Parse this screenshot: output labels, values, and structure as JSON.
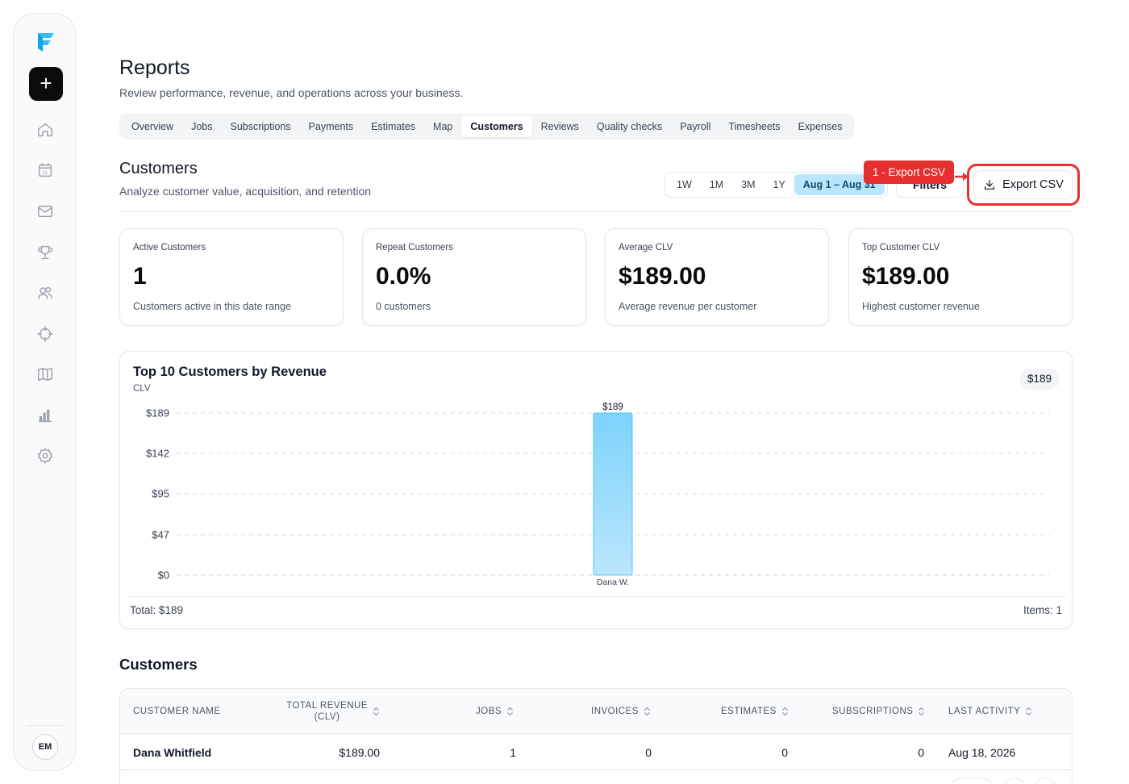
{
  "sidebar": {
    "add_label": "+",
    "icons": [
      "home-icon",
      "calendar-icon",
      "mail-icon",
      "trophy-icon",
      "users-icon",
      "crosshair-icon",
      "map-icon",
      "bar-chart-icon",
      "gear-icon"
    ],
    "calendar_day": "31",
    "avatar_initials": "EM"
  },
  "header": {
    "title": "Reports",
    "subtitle": "Review performance, revenue, and operations across your business."
  },
  "tabs": [
    {
      "label": "Overview",
      "active": false
    },
    {
      "label": "Jobs",
      "active": false
    },
    {
      "label": "Subscriptions",
      "active": false
    },
    {
      "label": "Payments",
      "active": false
    },
    {
      "label": "Estimates",
      "active": false
    },
    {
      "label": "Map",
      "active": false
    },
    {
      "label": "Customers",
      "active": true
    },
    {
      "label": "Reviews",
      "active": false
    },
    {
      "label": "Quality checks",
      "active": false
    },
    {
      "label": "Payroll",
      "active": false
    },
    {
      "label": "Timesheets",
      "active": false
    },
    {
      "label": "Expenses",
      "active": false
    }
  ],
  "section": {
    "title": "Customers",
    "subtitle": "Analyze customer value, acquisition, and retention"
  },
  "toolbar": {
    "ranges": [
      {
        "label": "1W",
        "active": false
      },
      {
        "label": "1M",
        "active": false
      },
      {
        "label": "3M",
        "active": false
      },
      {
        "label": "1Y",
        "active": false
      },
      {
        "label": "Aug 1 – Aug 31",
        "active": true
      }
    ],
    "filters_label": "Filters",
    "export_label": "Export CSV",
    "callout_label": "1 - Export CSV"
  },
  "kpis": [
    {
      "label": "Active Customers",
      "value": "1",
      "desc": "Customers active in this date range"
    },
    {
      "label": "Repeat Customers",
      "value": "0.0%",
      "desc": "0 customers"
    },
    {
      "label": "Average CLV",
      "value": "$189.00",
      "desc": "Average revenue per customer"
    },
    {
      "label": "Top Customer CLV",
      "value": "$189.00",
      "desc": "Highest customer revenue"
    }
  ],
  "chart": {
    "title": "Top 10 Customers by Revenue",
    "subtitle": "CLV",
    "badge": "$189",
    "total": "Total: $189",
    "items": "Items: 1"
  },
  "chart_data": {
    "type": "bar",
    "title": "Top 10 Customers by Revenue",
    "ylabel": "CLV",
    "categories": [
      "Dana W."
    ],
    "values": [
      189
    ],
    "data_labels": [
      "$189"
    ],
    "y_ticks": [
      "$189",
      "$142",
      "$95",
      "$47",
      "$0"
    ],
    "y_tick_values": [
      189,
      142,
      95,
      47,
      0
    ],
    "ylim": [
      0,
      189
    ],
    "grid": true,
    "colors": {
      "bar_top": "#7dd3fc",
      "bar_bottom": "#bae6fd",
      "bar_stroke": "#38bdf8"
    }
  },
  "table": {
    "title": "Customers",
    "headers": {
      "name": "CUSTOMER NAME",
      "revenue_line1": "TOTAL REVENUE",
      "revenue_line2": "(CLV)",
      "jobs": "JOBS",
      "invoices": "INVOICES",
      "estimates": "ESTIMATES",
      "subscriptions": "SUBSCRIPTIONS",
      "last_activity": "LAST ACTIVITY"
    },
    "rows": [
      {
        "name": "Dana Whitfield",
        "revenue": "$189.00",
        "jobs": "1",
        "invoices": "0",
        "estimates": "0",
        "subscriptions": "0",
        "last_activity": "Aug 18, 2026"
      }
    ]
  },
  "colors": {
    "accent": "#e82f2f",
    "active_range": "#bae6fd",
    "primary": "#0b0b0b"
  }
}
